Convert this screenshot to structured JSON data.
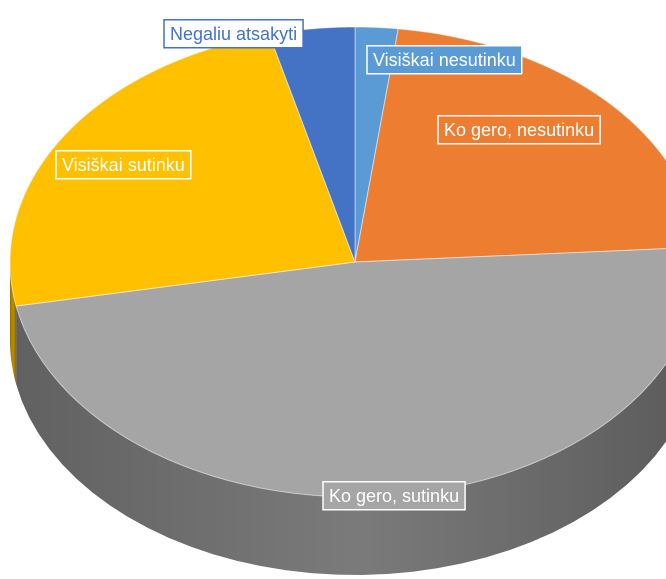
{
  "chart_data": {
    "type": "pie",
    "categories": [
      "Visiškai nesutinku",
      "Ko gero, nesutinku",
      "Ko gero, sutinku",
      "Visiškai sutinku",
      "Negaliu atsakyti"
    ],
    "values": [
      2,
      22,
      48,
      24,
      4
    ],
    "colors": [
      "#5b9bd5",
      "#ed7d31",
      "#a5a5a5",
      "#ffc000",
      "#4472c4"
    ],
    "start_angle": 0,
    "direction": "clockwise",
    "three_d": true
  }
}
